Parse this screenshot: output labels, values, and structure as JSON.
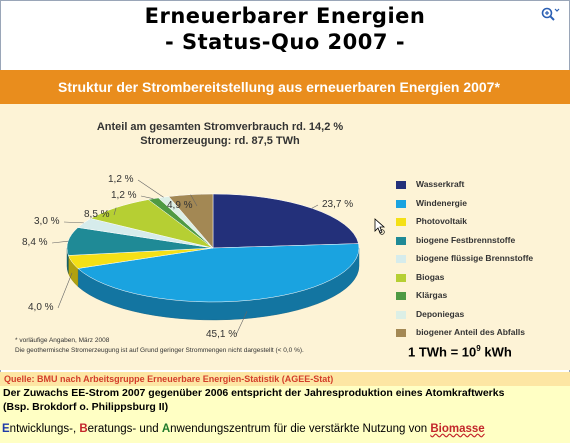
{
  "page": {
    "title_line1": "Erneuerbarer Energien",
    "title_line2": "- Status-Quo 2007 -"
  },
  "icons": {
    "zoom": "zoom-in-icon",
    "cursor": "pointer-cursor-icon"
  },
  "chart_data": {
    "type": "pie",
    "title": "Struktur der Strombereitstellung aus erneuerbaren Energien 2007*",
    "subtitle_line1": "Anteil am gesamten Stromverbrauch rd. 14,2 %",
    "subtitle_line2": "Stromerzeugung: rd. 87,5 TWh",
    "legend_position": "right",
    "slices": [
      {
        "label": "Wasserkraft",
        "value": 23.7,
        "value_text": "23,7 %",
        "color": "#23307a"
      },
      {
        "label": "Windenergie",
        "value": 45.1,
        "value_text": "45,1 %",
        "color": "#1aa3e0"
      },
      {
        "label": "Photovoltaik",
        "value": 4.0,
        "value_text": "4,0 %",
        "color": "#f4e016"
      },
      {
        "label": "biogene Festbrennstoffe",
        "value": 8.4,
        "value_text": "8,4 %",
        "color": "#1f8a96"
      },
      {
        "label": "biogene flüssige Brennstoffe",
        "value": 3.0,
        "value_text": "3,0 %",
        "color": "#d6ecec"
      },
      {
        "label": "Biogas",
        "value": 8.5,
        "value_text": "8,5 %",
        "color": "#b6cf33"
      },
      {
        "label": "Klärgas",
        "value": 1.2,
        "value_text": "1,2 %",
        "color": "#4e9a43"
      },
      {
        "label": "Deponiegas",
        "value": 1.2,
        "value_text": "1,2 %",
        "color": "#dcefe6"
      },
      {
        "label": "biogener Anteil des Abfalls",
        "value": 4.9,
        "value_text": "4,9 %",
        "color": "#a38854"
      }
    ],
    "footnote1": "* vorläufige Angaben, März 2008",
    "footnote2": "Die geothermische Stromerzeugung ist auf Grund geringer Strommengen nicht dargestellt (< 0,0 %)."
  },
  "unit_note": {
    "base": "1 TWh = 10",
    "exponent": "9",
    "suffix": " kWh"
  },
  "source": "Quelle: BMU nach Arbeitsgruppe Erneuerbare Energien-Statistik (AGEE-Stat)",
  "note_line1": "Der Zuwachs EE-Strom 2007 gegenüber 2006 entspricht der Jahresproduktion eines Atomkraftwerks",
  "note_line2": "(Bsp. Brokdorf o. Philippsburg II)",
  "ebene": {
    "p1": "E",
    "t1": "ntwicklungs-, ",
    "p2": "B",
    "t2": "eratungs- und ",
    "p3": "A",
    "t3": "nwendungszentrum für die verstärkte Nutzung von ",
    "p4": "Biomasse"
  }
}
